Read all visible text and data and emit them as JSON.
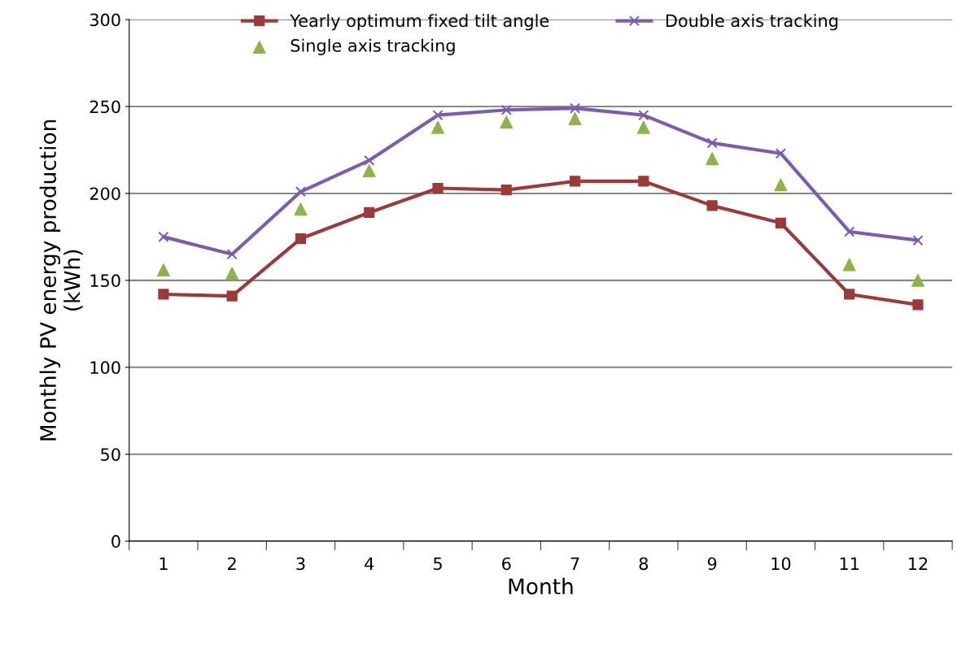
{
  "chart_data": {
    "type": "line",
    "xlabel": "Month",
    "ylabel": "Monthly PV energy production\n(kWh)",
    "categories": [
      "1",
      "2",
      "3",
      "4",
      "5",
      "6",
      "7",
      "8",
      "9",
      "10",
      "11",
      "12"
    ],
    "series": [
      {
        "name": "Yearly optimum fixed tilt angle",
        "color": "#9b3a38",
        "marker": "square",
        "values": [
          142,
          141,
          174,
          189,
          203,
          202,
          207,
          207,
          193,
          183,
          142,
          136
        ]
      },
      {
        "name": "Single axis tracking",
        "type": "scatter",
        "color": "#8db44a",
        "marker": "triangle",
        "values": [
          156,
          154,
          191,
          213,
          238,
          241,
          243,
          238,
          220,
          205,
          159,
          150
        ]
      },
      {
        "name": "Double axis tracking",
        "color": "#7a5db0",
        "marker": "cross",
        "values": [
          175,
          165,
          201,
          219,
          245,
          248,
          249,
          245,
          229,
          223,
          178,
          173
        ]
      }
    ],
    "ylim": [
      0,
      300
    ],
    "yticks": [
      0,
      50,
      100,
      150,
      200,
      250,
      300
    ],
    "grid": "y",
    "legend": "top"
  }
}
